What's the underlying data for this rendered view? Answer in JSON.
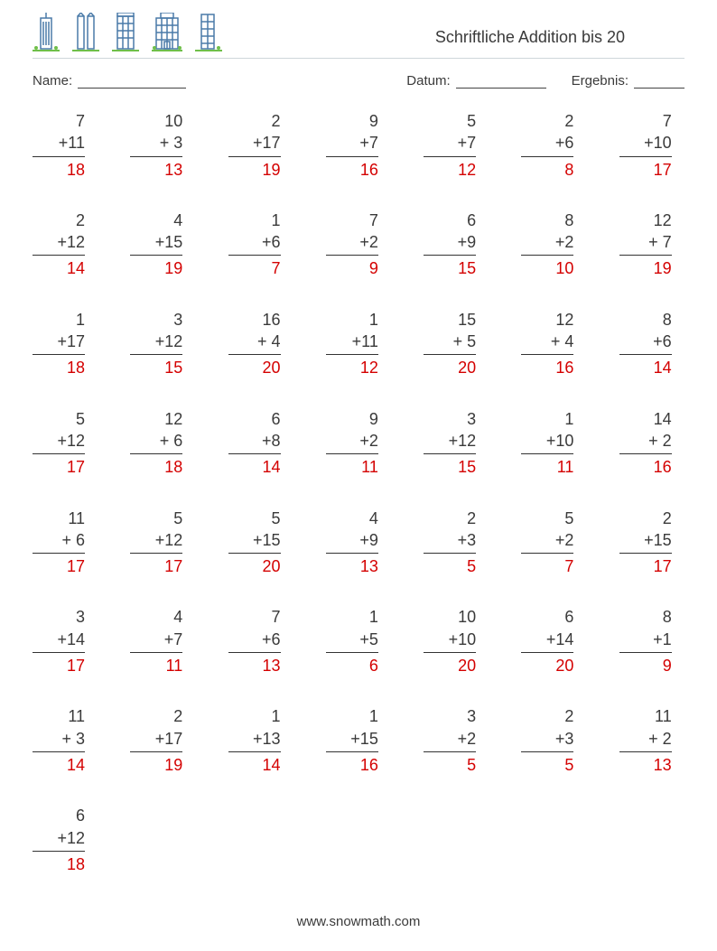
{
  "title": "Schriftliche Addition bis 20",
  "labels": {
    "name": "Name:",
    "datum": "Datum:",
    "ergebnis": "Ergebnis:"
  },
  "footer": "www.snowmath.com",
  "colors": {
    "text": "#3a3a3a",
    "answer": "#d40000",
    "rule": "#cfd6da",
    "building_stroke": "#4a7aa8",
    "grass": "#6fbf4a"
  },
  "columns": 7,
  "problems": [
    {
      "a": 7,
      "b": 11,
      "ans": 18
    },
    {
      "a": 10,
      "b": 3,
      "ans": 13
    },
    {
      "a": 2,
      "b": 17,
      "ans": 19
    },
    {
      "a": 9,
      "b": 7,
      "ans": 16
    },
    {
      "a": 5,
      "b": 7,
      "ans": 12
    },
    {
      "a": 2,
      "b": 6,
      "ans": 8
    },
    {
      "a": 7,
      "b": 10,
      "ans": 17
    },
    {
      "a": 2,
      "b": 12,
      "ans": 14
    },
    {
      "a": 4,
      "b": 15,
      "ans": 19
    },
    {
      "a": 1,
      "b": 6,
      "ans": 7
    },
    {
      "a": 7,
      "b": 2,
      "ans": 9
    },
    {
      "a": 6,
      "b": 9,
      "ans": 15
    },
    {
      "a": 8,
      "b": 2,
      "ans": 10
    },
    {
      "a": 12,
      "b": 7,
      "ans": 19
    },
    {
      "a": 1,
      "b": 17,
      "ans": 18
    },
    {
      "a": 3,
      "b": 12,
      "ans": 15
    },
    {
      "a": 16,
      "b": 4,
      "ans": 20
    },
    {
      "a": 1,
      "b": 11,
      "ans": 12
    },
    {
      "a": 15,
      "b": 5,
      "ans": 20
    },
    {
      "a": 12,
      "b": 4,
      "ans": 16
    },
    {
      "a": 8,
      "b": 6,
      "ans": 14
    },
    {
      "a": 5,
      "b": 12,
      "ans": 17
    },
    {
      "a": 12,
      "b": 6,
      "ans": 18
    },
    {
      "a": 6,
      "b": 8,
      "ans": 14
    },
    {
      "a": 9,
      "b": 2,
      "ans": 11
    },
    {
      "a": 3,
      "b": 12,
      "ans": 15
    },
    {
      "a": 1,
      "b": 10,
      "ans": 11
    },
    {
      "a": 14,
      "b": 2,
      "ans": 16
    },
    {
      "a": 11,
      "b": 6,
      "ans": 17
    },
    {
      "a": 5,
      "b": 12,
      "ans": 17
    },
    {
      "a": 5,
      "b": 15,
      "ans": 20
    },
    {
      "a": 4,
      "b": 9,
      "ans": 13
    },
    {
      "a": 2,
      "b": 3,
      "ans": 5
    },
    {
      "a": 5,
      "b": 2,
      "ans": 7
    },
    {
      "a": 2,
      "b": 15,
      "ans": 17
    },
    {
      "a": 3,
      "b": 14,
      "ans": 17
    },
    {
      "a": 4,
      "b": 7,
      "ans": 11
    },
    {
      "a": 7,
      "b": 6,
      "ans": 13
    },
    {
      "a": 1,
      "b": 5,
      "ans": 6
    },
    {
      "a": 10,
      "b": 10,
      "ans": 20
    },
    {
      "a": 6,
      "b": 14,
      "ans": 20
    },
    {
      "a": 8,
      "b": 1,
      "ans": 9
    },
    {
      "a": 11,
      "b": 3,
      "ans": 14
    },
    {
      "a": 2,
      "b": 17,
      "ans": 19
    },
    {
      "a": 1,
      "b": 13,
      "ans": 14
    },
    {
      "a": 1,
      "b": 15,
      "ans": 16
    },
    {
      "a": 3,
      "b": 2,
      "ans": 5
    },
    {
      "a": 2,
      "b": 3,
      "ans": 5
    },
    {
      "a": 11,
      "b": 2,
      "ans": 13
    },
    {
      "a": 6,
      "b": 12,
      "ans": 18
    }
  ]
}
